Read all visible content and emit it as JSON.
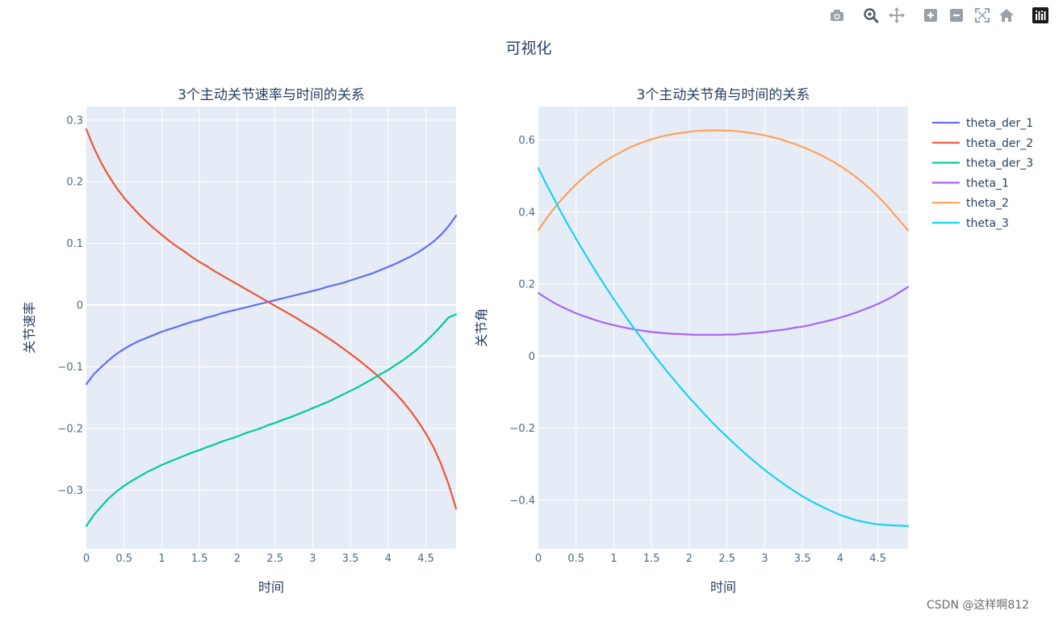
{
  "figure": {
    "title": "可视化"
  },
  "toolbar": {
    "icons": [
      "camera-icon",
      "zoom-icon",
      "pan-icon",
      "zoom-in-icon",
      "zoom-out-icon",
      "autoscale-icon",
      "home-icon",
      "plotly-logo-icon"
    ]
  },
  "watermark": "CSDN @这样啊812",
  "colors": {
    "plot_bg": "#e5ecf6",
    "grid": "#ffffff",
    "text": "#2a3f5f",
    "tick_text": "#506784"
  },
  "chart_data": [
    {
      "type": "line",
      "title": "3个主动关节速率与时间的关系",
      "xlabel": "时间",
      "ylabel": "关节速率",
      "xlim": [
        0,
        4.9
      ],
      "ylim": [
        -0.395,
        0.322
      ],
      "x_ticks": [
        0,
        0.5,
        1,
        1.5,
        2,
        2.5,
        3,
        3.5,
        4,
        4.5
      ],
      "x_tick_labels": [
        "0",
        "0.5",
        "1",
        "1.5",
        "2",
        "2.5",
        "3",
        "3.5",
        "4",
        "4.5"
      ],
      "y_ticks": [
        -0.3,
        -0.2,
        -0.1,
        0,
        0.1,
        0.2,
        0.3
      ],
      "y_tick_labels": [
        "−0.3",
        "−0.2",
        "−0.1",
        "0",
        "0.1",
        "0.2",
        "0.3"
      ],
      "grid": true,
      "x": [
        0,
        0.1,
        0.2,
        0.3,
        0.4,
        0.5,
        0.6,
        0.7,
        0.8,
        0.9,
        1.0,
        1.1,
        1.2,
        1.3,
        1.4,
        1.5,
        1.6,
        1.7,
        1.8,
        1.9,
        2.0,
        2.1,
        2.2,
        2.3,
        2.4,
        2.5,
        2.6,
        2.7,
        2.8,
        2.9,
        3.0,
        3.1,
        3.2,
        3.3,
        3.4,
        3.5,
        3.6,
        3.7,
        3.8,
        3.9,
        4.0,
        4.1,
        4.2,
        4.3,
        4.4,
        4.5,
        4.6,
        4.7,
        4.8,
        4.9
      ],
      "series": [
        {
          "name": "theta_der_1",
          "color": "#636efa",
          "values": [
            -0.128,
            -0.112,
            -0.1,
            -0.089,
            -0.079,
            -0.071,
            -0.064,
            -0.058,
            -0.053,
            -0.048,
            -0.043,
            -0.039,
            -0.035,
            -0.031,
            -0.027,
            -0.024,
            -0.02,
            -0.017,
            -0.013,
            -0.01,
            -0.007,
            -0.004,
            -0.001,
            0.002,
            0.005,
            0.008,
            0.011,
            0.014,
            0.017,
            0.02,
            0.023,
            0.026,
            0.03,
            0.033,
            0.036,
            0.04,
            0.044,
            0.048,
            0.052,
            0.057,
            0.062,
            0.067,
            0.073,
            0.079,
            0.086,
            0.094,
            0.103,
            0.114,
            0.128,
            0.145
          ]
        },
        {
          "name": "theta_der_2",
          "color": "#ef553b",
          "values": [
            0.285,
            0.255,
            0.23,
            0.209,
            0.19,
            0.174,
            0.16,
            0.147,
            0.135,
            0.124,
            0.114,
            0.104,
            0.095,
            0.087,
            0.078,
            0.07,
            0.063,
            0.055,
            0.048,
            0.041,
            0.034,
            0.027,
            0.02,
            0.013,
            0.006,
            -0.001,
            -0.008,
            -0.015,
            -0.022,
            -0.03,
            -0.037,
            -0.045,
            -0.053,
            -0.061,
            -0.07,
            -0.079,
            -0.088,
            -0.098,
            -0.108,
            -0.119,
            -0.131,
            -0.143,
            -0.157,
            -0.172,
            -0.189,
            -0.208,
            -0.23,
            -0.257,
            -0.29,
            -0.33
          ]
        },
        {
          "name": "theta_der_3",
          "color": "#00cc96",
          "values": [
            -0.358,
            -0.34,
            -0.326,
            -0.313,
            -0.302,
            -0.293,
            -0.285,
            -0.278,
            -0.271,
            -0.265,
            -0.259,
            -0.254,
            -0.249,
            -0.244,
            -0.239,
            -0.235,
            -0.23,
            -0.226,
            -0.221,
            -0.217,
            -0.213,
            -0.208,
            -0.204,
            -0.2,
            -0.195,
            -0.191,
            -0.186,
            -0.182,
            -0.177,
            -0.172,
            -0.167,
            -0.162,
            -0.157,
            -0.151,
            -0.145,
            -0.139,
            -0.133,
            -0.126,
            -0.119,
            -0.112,
            -0.105,
            -0.097,
            -0.089,
            -0.08,
            -0.07,
            -0.059,
            -0.047,
            -0.034,
            -0.02,
            -0.015
          ]
        }
      ]
    },
    {
      "type": "line",
      "title": "3个主动关节角与时间的关系",
      "xlabel": "时间",
      "ylabel": "关节角",
      "xlim": [
        0,
        4.9
      ],
      "ylim": [
        -0.535,
        0.693
      ],
      "x_ticks": [
        0,
        0.5,
        1,
        1.5,
        2,
        2.5,
        3,
        3.5,
        4,
        4.5
      ],
      "x_tick_labels": [
        "0",
        "0.5",
        "1",
        "1.5",
        "2",
        "2.5",
        "3",
        "3.5",
        "4",
        "4.5"
      ],
      "y_ticks": [
        -0.4,
        -0.2,
        0,
        0.2,
        0.4,
        0.6
      ],
      "y_tick_labels": [
        "−0.4",
        "−0.2",
        "0",
        "0.2",
        "0.4",
        "0.6"
      ],
      "grid": true,
      "x": [
        0,
        0.1,
        0.2,
        0.3,
        0.4,
        0.5,
        0.6,
        0.7,
        0.8,
        0.9,
        1.0,
        1.1,
        1.2,
        1.3,
        1.4,
        1.5,
        1.6,
        1.7,
        1.8,
        1.9,
        2.0,
        2.1,
        2.2,
        2.3,
        2.4,
        2.5,
        2.6,
        2.7,
        2.8,
        2.9,
        3.0,
        3.1,
        3.2,
        3.3,
        3.4,
        3.5,
        3.6,
        3.7,
        3.8,
        3.9,
        4.0,
        4.1,
        4.2,
        4.3,
        4.4,
        4.5,
        4.6,
        4.7,
        4.8,
        4.9
      ],
      "series": [
        {
          "name": "theta_1",
          "color": "#ab63fa",
          "values": [
            0.175,
            0.162,
            0.149,
            0.138,
            0.128,
            0.119,
            0.111,
            0.104,
            0.097,
            0.091,
            0.086,
            0.081,
            0.077,
            0.073,
            0.07,
            0.067,
            0.065,
            0.063,
            0.062,
            0.061,
            0.06,
            0.059,
            0.059,
            0.059,
            0.059,
            0.06,
            0.06,
            0.062,
            0.063,
            0.065,
            0.067,
            0.07,
            0.072,
            0.075,
            0.079,
            0.082,
            0.086,
            0.091,
            0.096,
            0.101,
            0.107,
            0.113,
            0.12,
            0.128,
            0.136,
            0.145,
            0.155,
            0.166,
            0.179,
            0.192
          ]
        },
        {
          "name": "theta_2",
          "color": "#ffa15a",
          "values": [
            0.35,
            0.38,
            0.408,
            0.433,
            0.456,
            0.477,
            0.496,
            0.513,
            0.529,
            0.543,
            0.556,
            0.567,
            0.578,
            0.587,
            0.595,
            0.602,
            0.608,
            0.613,
            0.617,
            0.62,
            0.623,
            0.625,
            0.626,
            0.627,
            0.627,
            0.626,
            0.625,
            0.623,
            0.62,
            0.617,
            0.613,
            0.608,
            0.603,
            0.596,
            0.589,
            0.581,
            0.572,
            0.563,
            0.552,
            0.541,
            0.528,
            0.514,
            0.499,
            0.482,
            0.464,
            0.444,
            0.422,
            0.398,
            0.373,
            0.35
          ]
        },
        {
          "name": "theta_3",
          "color": "#19d3f3",
          "values": [
            0.522,
            0.48,
            0.44,
            0.4,
            0.362,
            0.326,
            0.29,
            0.256,
            0.222,
            0.19,
            0.158,
            0.127,
            0.097,
            0.068,
            0.04,
            0.012,
            -0.015,
            -0.041,
            -0.066,
            -0.091,
            -0.115,
            -0.138,
            -0.161,
            -0.183,
            -0.204,
            -0.224,
            -0.244,
            -0.263,
            -0.281,
            -0.299,
            -0.316,
            -0.332,
            -0.347,
            -0.362,
            -0.376,
            -0.389,
            -0.401,
            -0.412,
            -0.422,
            -0.432,
            -0.441,
            -0.448,
            -0.455,
            -0.46,
            -0.464,
            -0.467,
            -0.469,
            -0.47,
            -0.471,
            -0.472
          ]
        }
      ]
    }
  ]
}
